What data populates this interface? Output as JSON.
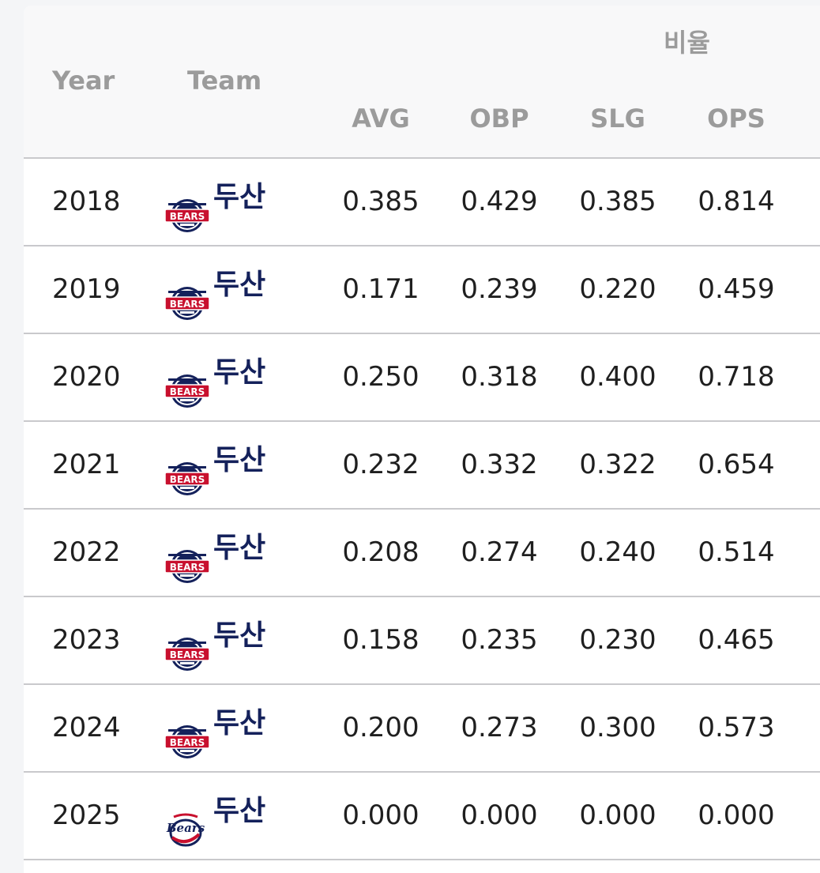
{
  "header": {
    "group_label": "비율",
    "columns": {
      "year": "Year",
      "team": "Team",
      "avg": "AVG",
      "obp": "OBP",
      "slg": "SLG",
      "ops": "OPS"
    }
  },
  "colors": {
    "header_text": "#9b9b9b",
    "team_name": "#14215b",
    "logo_red": "#c8102e",
    "logo_navy": "#14215b"
  },
  "rows": [
    {
      "year": "2018",
      "team": "두산",
      "logo": "bears-classic-logo",
      "avg": "0.385",
      "obp": "0.429",
      "slg": "0.385",
      "ops": "0.814"
    },
    {
      "year": "2019",
      "team": "두산",
      "logo": "bears-classic-logo",
      "avg": "0.171",
      "obp": "0.239",
      "slg": "0.220",
      "ops": "0.459"
    },
    {
      "year": "2020",
      "team": "두산",
      "logo": "bears-classic-logo",
      "avg": "0.250",
      "obp": "0.318",
      "slg": "0.400",
      "ops": "0.718"
    },
    {
      "year": "2021",
      "team": "두산",
      "logo": "bears-classic-logo",
      "avg": "0.232",
      "obp": "0.332",
      "slg": "0.322",
      "ops": "0.654"
    },
    {
      "year": "2022",
      "team": "두산",
      "logo": "bears-classic-logo",
      "avg": "0.208",
      "obp": "0.274",
      "slg": "0.240",
      "ops": "0.514"
    },
    {
      "year": "2023",
      "team": "두산",
      "logo": "bears-classic-logo",
      "avg": "0.158",
      "obp": "0.235",
      "slg": "0.230",
      "ops": "0.465"
    },
    {
      "year": "2024",
      "team": "두산",
      "logo": "bears-classic-logo",
      "avg": "0.200",
      "obp": "0.273",
      "slg": "0.300",
      "ops": "0.573"
    },
    {
      "year": "2025",
      "team": "두산",
      "logo": "bears-script-logo",
      "avg": "0.000",
      "obp": "0.000",
      "slg": "0.000",
      "ops": "0.000"
    }
  ]
}
